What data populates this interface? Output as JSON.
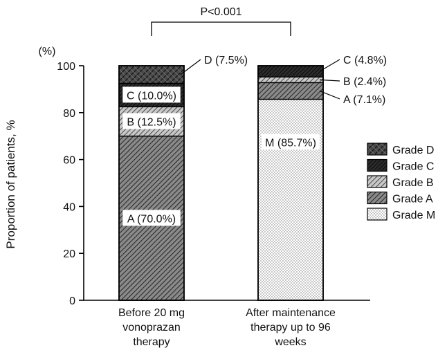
{
  "chart_data": {
    "type": "bar",
    "stacked": true,
    "ylabel": "Proportion of patients, %",
    "yunit": "(%)",
    "ylim": [
      0,
      100
    ],
    "yticks": [
      0,
      20,
      40,
      60,
      80,
      100
    ],
    "categories": [
      [
        "Before 20 mg",
        "vonoprazan",
        "therapy"
      ],
      [
        "After maintenance",
        "therapy up to 96",
        "weeks"
      ]
    ],
    "series": [
      {
        "name": "Grade M",
        "key": "M",
        "pattern": "dots",
        "values": [
          0,
          85.7
        ]
      },
      {
        "name": "Grade A",
        "key": "A",
        "pattern": "hatchA",
        "values": [
          70.0,
          7.1
        ]
      },
      {
        "name": "Grade B",
        "key": "B",
        "pattern": "hatchB",
        "values": [
          12.5,
          2.4
        ]
      },
      {
        "name": "Grade C",
        "key": "C",
        "pattern": "dark",
        "values": [
          10.0,
          4.8
        ]
      },
      {
        "name": "Grade D",
        "key": "D",
        "pattern": "cross",
        "values": [
          7.5,
          0
        ]
      }
    ],
    "bar_labels": [
      [
        {
          "series": "A",
          "text": "A (70.0%)",
          "placement": "inside"
        },
        {
          "series": "B",
          "text": "B (12.5%)",
          "placement": "inside"
        },
        {
          "series": "C",
          "text": "C (10.0%)",
          "placement": "inside"
        },
        {
          "series": "D",
          "text": "D (7.5%)",
          "placement": "outside"
        }
      ],
      [
        {
          "series": "M",
          "text": "M (85.7%)",
          "placement": "inside"
        },
        {
          "series": "A",
          "text": "A (7.1%)",
          "placement": "outside"
        },
        {
          "series": "B",
          "text": "B (2.4%)",
          "placement": "outside"
        },
        {
          "series": "C",
          "text": "C (4.8%)",
          "placement": "outside"
        }
      ]
    ],
    "legend": [
      "Grade D",
      "Grade C",
      "Grade B",
      "Grade A",
      "Grade M"
    ],
    "legend_position": "right",
    "annotation": "P<0.001"
  }
}
